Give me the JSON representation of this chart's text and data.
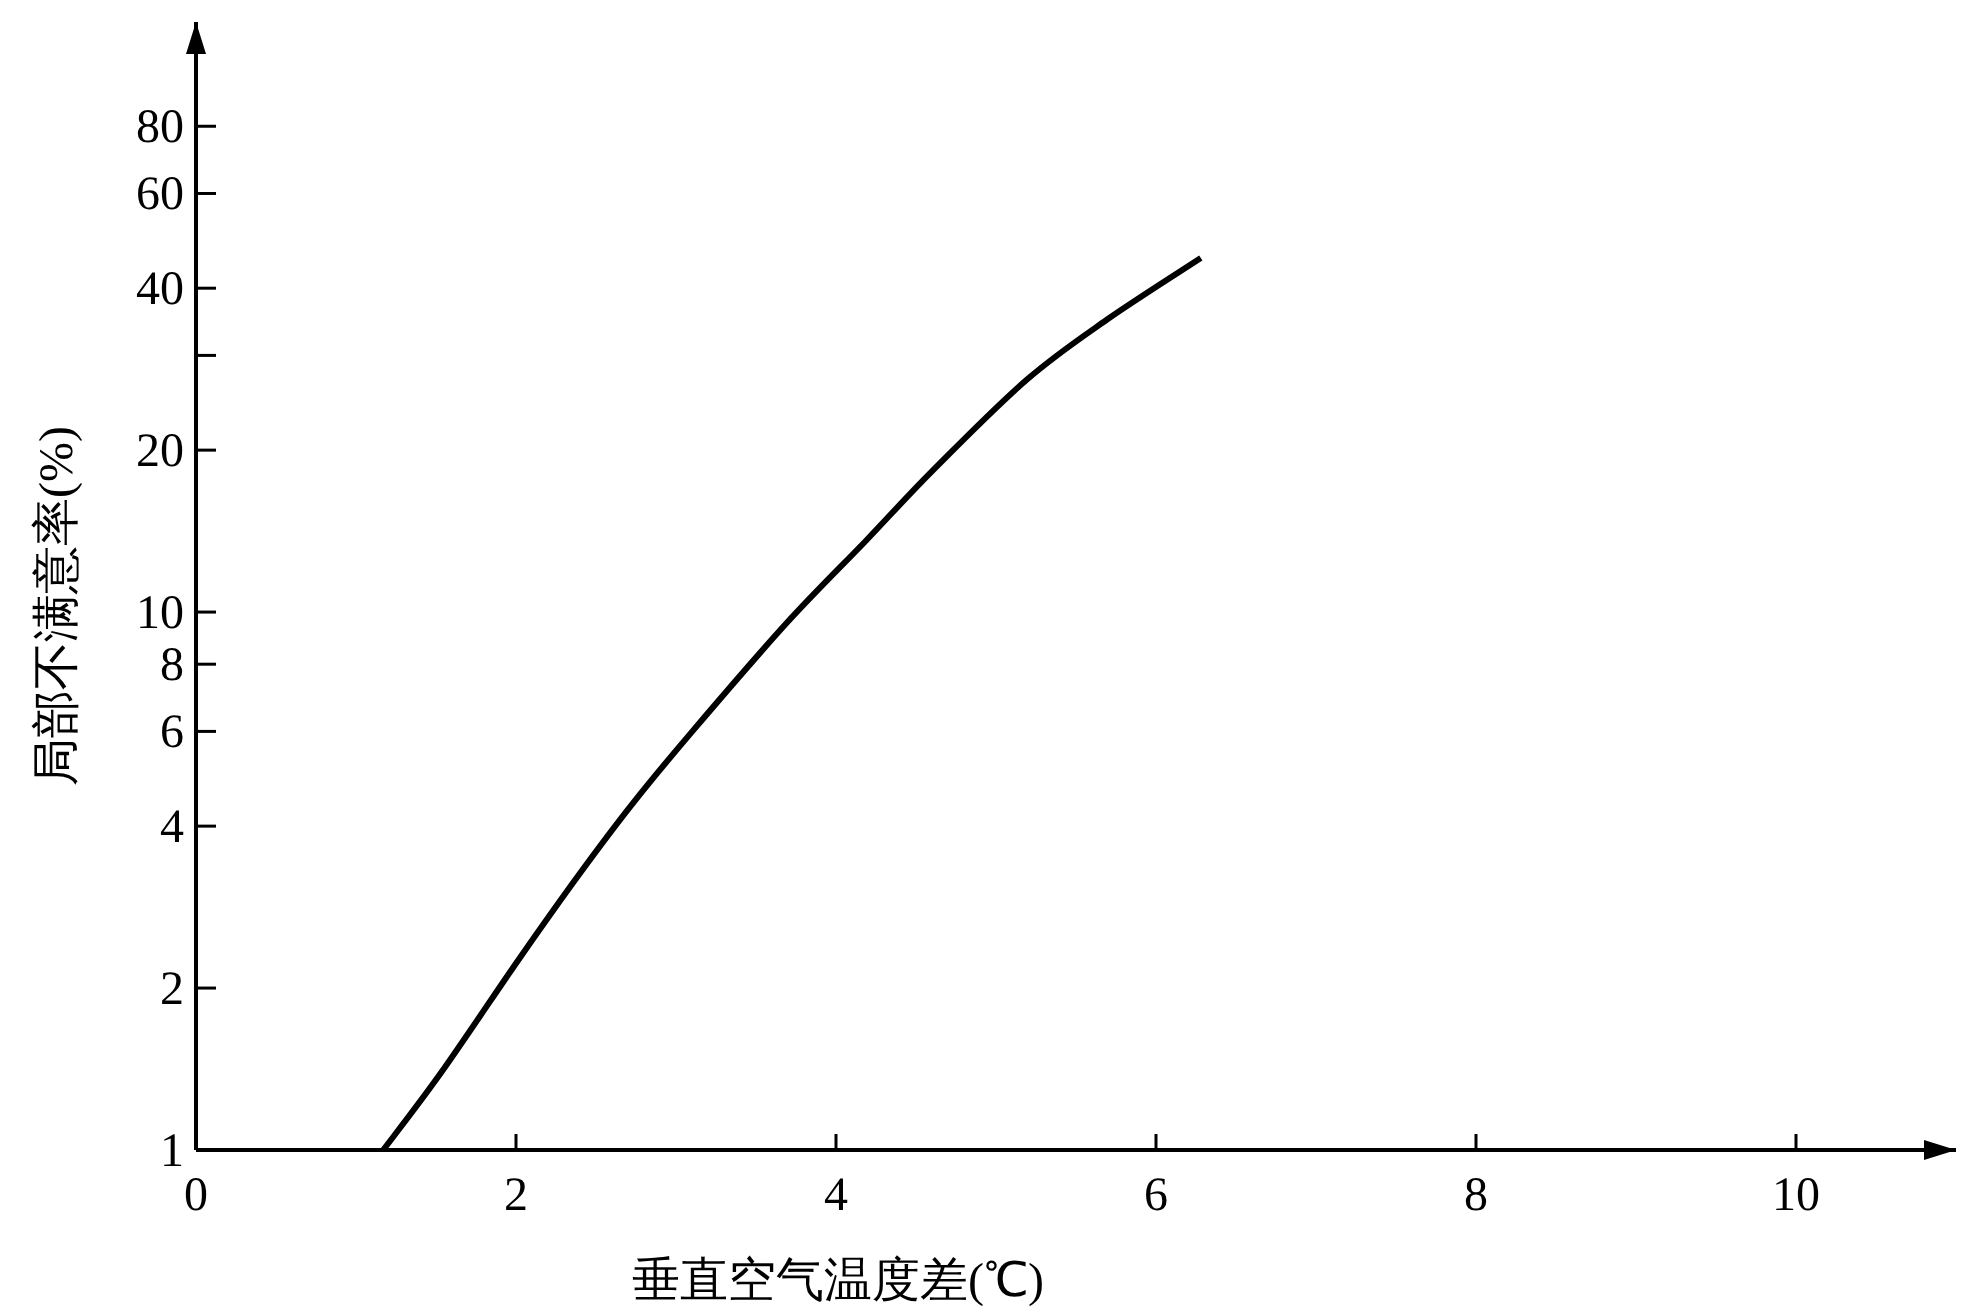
{
  "chart_data": {
    "type": "line",
    "xlabel": "垂直空气温度差(℃)",
    "ylabel": "局部不满意率(%)",
    "log": "y",
    "xlim": [
      0,
      11
    ],
    "ylim": [
      1,
      125
    ],
    "xticks": [
      0,
      2,
      4,
      6,
      8,
      10
    ],
    "yticks": [
      1,
      2,
      4,
      6,
      8,
      10,
      20,
      {
        "value": 30,
        "label": null
      },
      40,
      60,
      80
    ],
    "series": [
      {
        "color": "#000000",
        "x": [
          1.17,
          1.53,
          2.03,
          2.4,
          2.73,
          3.11,
          3.69,
          4.19,
          4.61,
          5.19,
          5.69,
          6.28
        ],
        "values": [
          1,
          1.39,
          2.29,
          3.27,
          4.41,
          6.04,
          9.53,
          13.6,
          18.4,
          27.0,
          34.9,
          45.5
        ]
      }
    ]
  }
}
